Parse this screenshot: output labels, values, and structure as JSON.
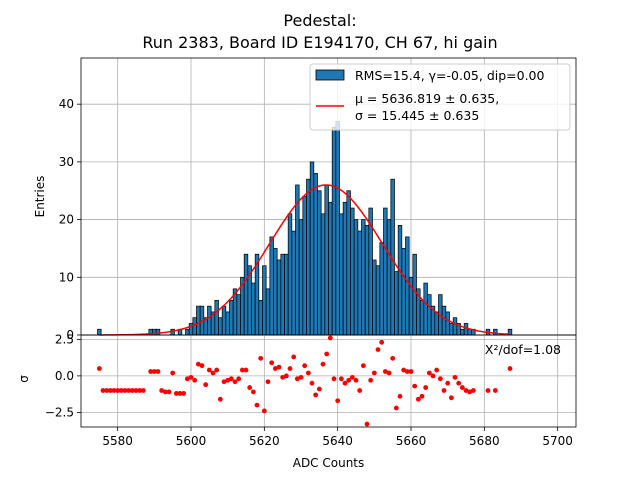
{
  "chart_data": [
    {
      "panel": "top",
      "type": "bar",
      "title_line1": "Pedestal:",
      "title_line2": "Run 2383, Board ID E194170, CH 67, hi gain",
      "ylabel": "Entries",
      "xlim": [
        5570,
        5705
      ],
      "ylim": [
        0,
        48
      ],
      "yticks": [
        0,
        10,
        20,
        30,
        40
      ],
      "grid": true,
      "legend_position": "top-right",
      "bin_width": 1,
      "histogram": {
        "name": "RMS=15.4, γ=-0.05, dip=0.00",
        "color": "#1f77b4",
        "bins": [
          [
            5575,
            1
          ],
          [
            5589,
            1
          ],
          [
            5590,
            1
          ],
          [
            5591,
            1
          ],
          [
            5595,
            1
          ],
          [
            5597,
            1
          ],
          [
            5599,
            1
          ],
          [
            5600,
            2
          ],
          [
            5601,
            3
          ],
          [
            5602,
            5
          ],
          [
            5603,
            5
          ],
          [
            5604,
            3
          ],
          [
            5605,
            5
          ],
          [
            5606,
            4
          ],
          [
            5607,
            6
          ],
          [
            5608,
            3
          ],
          [
            5609,
            5
          ],
          [
            5610,
            4
          ],
          [
            5611,
            6
          ],
          [
            5612,
            8
          ],
          [
            5613,
            7
          ],
          [
            5614,
            10
          ],
          [
            5615,
            14
          ],
          [
            5616,
            12
          ],
          [
            5617,
            9
          ],
          [
            5618,
            14
          ],
          [
            5619,
            6
          ],
          [
            5620,
            12
          ],
          [
            5621,
            8
          ],
          [
            5622,
            17
          ],
          [
            5623,
            15
          ],
          [
            5624,
            13
          ],
          [
            5625,
            14
          ],
          [
            5626,
            14
          ],
          [
            5627,
            21
          ],
          [
            5628,
            18
          ],
          [
            5629,
            26
          ],
          [
            5630,
            20
          ],
          [
            5631,
            24
          ],
          [
            5632,
            27
          ],
          [
            5633,
            30
          ],
          [
            5634,
            28
          ],
          [
            5635,
            25
          ],
          [
            5636,
            21
          ],
          [
            5637,
            26
          ],
          [
            5638,
            23
          ],
          [
            5639,
            36
          ],
          [
            5640,
            37
          ],
          [
            5641,
            21
          ],
          [
            5642,
            23
          ],
          [
            5643,
            25
          ],
          [
            5644,
            22
          ],
          [
            5645,
            20
          ],
          [
            5646,
            18
          ],
          [
            5647,
            20
          ],
          [
            5648,
            19
          ],
          [
            5649,
            22
          ],
          [
            5650,
            13
          ],
          [
            5651,
            12
          ],
          [
            5652,
            16
          ],
          [
            5653,
            22
          ],
          [
            5654,
            20
          ],
          [
            5655,
            27
          ],
          [
            5656,
            11
          ],
          [
            5657,
            19
          ],
          [
            5658,
            15
          ],
          [
            5659,
            17
          ],
          [
            5660,
            10
          ],
          [
            5661,
            14
          ],
          [
            5662,
            8
          ],
          [
            5663,
            6
          ],
          [
            5664,
            9
          ],
          [
            5665,
            7
          ],
          [
            5666,
            5
          ],
          [
            5667,
            4
          ],
          [
            5668,
            7
          ],
          [
            5669,
            5
          ],
          [
            5670,
            4
          ],
          [
            5671,
            2
          ],
          [
            5672,
            3
          ],
          [
            5673,
            2
          ],
          [
            5674,
            1
          ],
          [
            5675,
            2
          ],
          [
            5676,
            1
          ],
          [
            5677,
            1
          ],
          [
            5681,
            1
          ],
          [
            5683,
            1
          ],
          [
            5687,
            1
          ]
        ]
      },
      "fit": {
        "name": "μ = 5636.819 ± 0.635,",
        "name_line2": "σ = 15.445 ± 0.635",
        "color": "#ff0000",
        "mu": 5636.819,
        "sigma": 15.445,
        "amplitude": 26,
        "x_range": [
          5575,
          5687
        ]
      }
    },
    {
      "panel": "bottom",
      "type": "scatter",
      "ylabel": "σ",
      "xlabel": "ADC Counts",
      "xlim": [
        5570,
        5705
      ],
      "ylim": [
        -3.5,
        2.8
      ],
      "xticks": [
        5580,
        5600,
        5620,
        5640,
        5660,
        5680,
        5700
      ],
      "yticks": [
        2.5,
        0.0,
        -2.5
      ],
      "ytick_labels": [
        "2.5",
        "0.0",
        "−2.5"
      ],
      "grid": true,
      "annotation": "Χ²/dof=1.08",
      "color": "#ff0000",
      "points": [
        [
          5575,
          0.5
        ],
        [
          5576,
          -1.0
        ],
        [
          5577,
          -1.0
        ],
        [
          5578,
          -1.0
        ],
        [
          5579,
          -1.0
        ],
        [
          5580,
          -1.0
        ],
        [
          5581,
          -1.0
        ],
        [
          5582,
          -1.0
        ],
        [
          5583,
          -1.0
        ],
        [
          5584,
          -1.0
        ],
        [
          5585,
          -1.0
        ],
        [
          5586,
          -1.0
        ],
        [
          5587,
          -1.0
        ],
        [
          5589,
          0.3
        ],
        [
          5590,
          0.3
        ],
        [
          5591,
          0.3
        ],
        [
          5592,
          -1.0
        ],
        [
          5593,
          -1.1
        ],
        [
          5594,
          -1.1
        ],
        [
          5595,
          0.2
        ],
        [
          5596,
          -1.2
        ],
        [
          5597,
          -1.2
        ],
        [
          5598,
          -1.2
        ],
        [
          5599,
          -0.2
        ],
        [
          5600,
          -0.1
        ],
        [
          5601,
          -0.3
        ],
        [
          5602,
          0.8
        ],
        [
          5603,
          0.7
        ],
        [
          5604,
          -0.6
        ],
        [
          5605,
          0.4
        ],
        [
          5606,
          0.2
        ],
        [
          5607,
          0.4
        ],
        [
          5608,
          -1.6
        ],
        [
          5609,
          -0.4
        ],
        [
          5610,
          -0.3
        ],
        [
          5611,
          -0.2
        ],
        [
          5612,
          -0.4
        ],
        [
          5613,
          -0.2
        ],
        [
          5614,
          0.4
        ],
        [
          5615,
          0.4
        ],
        [
          5616,
          -0.8
        ],
        [
          5617,
          -1.1
        ],
        [
          5618,
          -2.0
        ],
        [
          5619,
          1.2
        ],
        [
          5620,
          -2.4
        ],
        [
          5621,
          -0.4
        ],
        [
          5622,
          0.9
        ],
        [
          5623,
          0.5
        ],
        [
          5624,
          0.6
        ],
        [
          5625,
          -0.1
        ],
        [
          5626,
          0.0
        ],
        [
          5627,
          0.5
        ],
        [
          5628,
          1.3
        ],
        [
          5629,
          -0.2
        ],
        [
          5630,
          -0.1
        ],
        [
          5631,
          0.7
        ],
        [
          5632,
          0.2
        ],
        [
          5633,
          -0.5
        ],
        [
          5634,
          -1.3
        ],
        [
          5635,
          -0.9
        ],
        [
          5636,
          0.8
        ],
        [
          5637,
          1.5
        ],
        [
          5638,
          2.6
        ],
        [
          5639,
          -0.2
        ],
        [
          5640,
          -1.7
        ],
        [
          5641,
          -0.2
        ],
        [
          5642,
          -0.5
        ],
        [
          5643,
          -0.3
        ],
        [
          5644,
          -0.1
        ],
        [
          5645,
          -0.3
        ],
        [
          5646,
          -1.0
        ],
        [
          5647,
          0.7
        ],
        [
          5648,
          -3.3
        ],
        [
          5649,
          -0.3
        ],
        [
          5650,
          0.2
        ],
        [
          5651,
          1.8
        ],
        [
          5652,
          2.3
        ],
        [
          5653,
          0.3
        ],
        [
          5654,
          0.2
        ],
        [
          5655,
          1.2
        ],
        [
          5656,
          -2.2
        ],
        [
          5657,
          -1.4
        ],
        [
          5658,
          0.4
        ],
        [
          5659,
          0.3
        ],
        [
          5660,
          0.3
        ],
        [
          5661,
          -0.7
        ],
        [
          5662,
          -1.6
        ],
        [
          5663,
          -1.4
        ],
        [
          5664,
          -0.8
        ],
        [
          5665,
          0.2
        ],
        [
          5666,
          0.0
        ],
        [
          5667,
          0.4
        ],
        [
          5668,
          -0.2
        ],
        [
          5669,
          -1.0
        ],
        [
          5670,
          -0.5
        ],
        [
          5671,
          -1.5
        ],
        [
          5672,
          -0.1
        ],
        [
          5673,
          -0.5
        ],
        [
          5674,
          -0.8
        ],
        [
          5675,
          -1.0
        ],
        [
          5676,
          -1.1
        ],
        [
          5677,
          -1.0
        ],
        [
          5681,
          -1.0
        ],
        [
          5683,
          -1.0
        ],
        [
          5687,
          0.5
        ]
      ]
    }
  ]
}
